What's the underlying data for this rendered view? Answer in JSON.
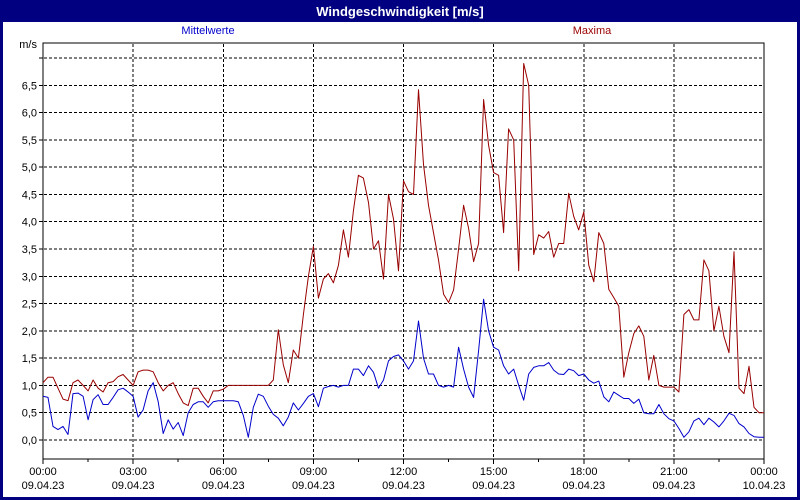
{
  "window": {
    "title": "Windgeschwindigkeit [m/s]"
  },
  "colors": {
    "title_bar": "#000080",
    "frame": "#000080",
    "background": "#ffffff",
    "plot_border": "#000000",
    "grid": "#000000",
    "mittelwerte": "#0000CC",
    "maxima": "#990000"
  },
  "chart_data": {
    "type": "line",
    "title": "Windgeschwindigkeit [m/s]",
    "ylabel": "m/s",
    "xlabel": "",
    "grid": "dashed",
    "ylim": [
      0,
      7
    ],
    "y_grid_step": 0.5,
    "y_tick_labels": [
      "0,0",
      "0,5",
      "1,0",
      "1,5",
      "2,0",
      "2,5",
      "3,0",
      "3,5",
      "4,0",
      "4,5",
      "5,0",
      "5,5",
      "6,0",
      "6,5"
    ],
    "x_range_minutes": [
      0,
      1440
    ],
    "sample_step_minutes": 10,
    "x_ticks": [
      {
        "minutes": 0,
        "time": "00:00",
        "date": "09.04.23"
      },
      {
        "minutes": 180,
        "time": "03:00",
        "date": "09.04.23"
      },
      {
        "minutes": 360,
        "time": "06:00",
        "date": "09.04.23"
      },
      {
        "minutes": 540,
        "time": "09:00",
        "date": "09.04.23"
      },
      {
        "minutes": 720,
        "time": "12:00",
        "date": "09.04.23"
      },
      {
        "minutes": 900,
        "time": "15:00",
        "date": "09.04.23"
      },
      {
        "minutes": 1080,
        "time": "18:00",
        "date": "09.04.23"
      },
      {
        "minutes": 1260,
        "time": "21:00",
        "date": "09.04.23"
      },
      {
        "minutes": 1440,
        "time": "00:00",
        "date": "10.04.23"
      }
    ],
    "x_minor_tick_minutes": [
      90,
      270,
      450,
      630,
      810,
      990,
      1170,
      1350
    ],
    "legend_position": "top",
    "series": [
      {
        "name": "Mittelwerte",
        "color": "#0000CC",
        "values": [
          0.8,
          0.78,
          0.25,
          0.19,
          0.25,
          0.1,
          0.85,
          0.86,
          0.8,
          0.37,
          0.74,
          0.83,
          0.65,
          0.65,
          0.78,
          0.92,
          0.95,
          0.88,
          0.8,
          0.42,
          0.55,
          0.9,
          1.05,
          0.7,
          0.12,
          0.37,
          0.2,
          0.32,
          0.08,
          0.5,
          0.65,
          0.7,
          0.7,
          0.6,
          0.7,
          0.72,
          0.72,
          0.72,
          0.72,
          0.7,
          0.45,
          0.05,
          0.6,
          0.84,
          0.8,
          0.62,
          0.47,
          0.4,
          0.26,
          0.42,
          0.68,
          0.55,
          0.67,
          0.8,
          0.85,
          0.61,
          0.95,
          0.98,
          1.0,
          0.97,
          1.0,
          1.0,
          1.3,
          1.3,
          1.18,
          1.36,
          1.24,
          0.95,
          1.1,
          1.45,
          1.53,
          1.56,
          1.45,
          1.3,
          1.45,
          2.18,
          1.5,
          1.21,
          1.21,
          1.0,
          0.97,
          1.0,
          0.97,
          1.7,
          1.3,
          0.97,
          0.78,
          1.64,
          2.58,
          2.0,
          1.7,
          1.65,
          1.36,
          1.21,
          1.3,
          1.0,
          0.73,
          1.21,
          1.33,
          1.36,
          1.36,
          1.42,
          1.28,
          1.21,
          1.2,
          1.3,
          1.27,
          1.18,
          1.21,
          1.1,
          1.04,
          1.08,
          0.79,
          0.7,
          0.88,
          0.82,
          0.76,
          0.76,
          0.67,
          0.75,
          0.5,
          0.48,
          0.48,
          0.65,
          0.48,
          0.39,
          0.35,
          0.21,
          0.05,
          0.15,
          0.35,
          0.4,
          0.28,
          0.4,
          0.33,
          0.24,
          0.35,
          0.49,
          0.45,
          0.3,
          0.24,
          0.12,
          0.06,
          0.05,
          0.05
        ]
      },
      {
        "name": "Maxima",
        "color": "#990000",
        "values": [
          1.05,
          1.15,
          1.15,
          0.95,
          0.75,
          0.72,
          1.05,
          1.1,
          1.0,
          0.9,
          1.1,
          0.95,
          0.88,
          1.05,
          1.07,
          1.16,
          1.2,
          1.1,
          1.0,
          1.25,
          1.28,
          1.28,
          1.25,
          1.05,
          0.9,
          1.0,
          1.05,
          0.85,
          0.68,
          0.63,
          0.95,
          0.95,
          0.8,
          0.68,
          0.9,
          0.9,
          0.93,
          1.0,
          1.0,
          1.0,
          1.0,
          1.0,
          1.0,
          1.0,
          1.0,
          1.0,
          1.1,
          2.02,
          1.38,
          1.05,
          1.65,
          1.5,
          2.3,
          3.0,
          3.55,
          2.6,
          2.95,
          3.05,
          2.88,
          3.2,
          3.85,
          3.35,
          4.2,
          4.85,
          4.8,
          4.35,
          3.5,
          3.65,
          2.95,
          4.5,
          4.05,
          3.1,
          4.75,
          4.55,
          4.5,
          6.42,
          5.05,
          4.3,
          3.8,
          3.3,
          2.67,
          2.52,
          2.75,
          3.5,
          4.3,
          3.88,
          3.27,
          3.6,
          6.24,
          5.4,
          4.9,
          4.85,
          3.8,
          5.7,
          5.5,
          3.1,
          6.9,
          6.5,
          3.4,
          3.76,
          3.7,
          3.82,
          3.35,
          3.6,
          3.6,
          4.52,
          4.1,
          3.85,
          4.18,
          3.2,
          2.9,
          3.8,
          3.6,
          2.76,
          2.61,
          2.45,
          1.15,
          1.6,
          1.95,
          2.09,
          1.9,
          1.1,
          1.55,
          1.0,
          0.97,
          0.97,
          0.97,
          0.88,
          2.3,
          2.39,
          2.2,
          2.2,
          3.3,
          3.1,
          2.0,
          2.45,
          1.9,
          1.6,
          3.45,
          0.95,
          0.85,
          1.35,
          0.6,
          0.5,
          0.5
        ]
      }
    ]
  }
}
